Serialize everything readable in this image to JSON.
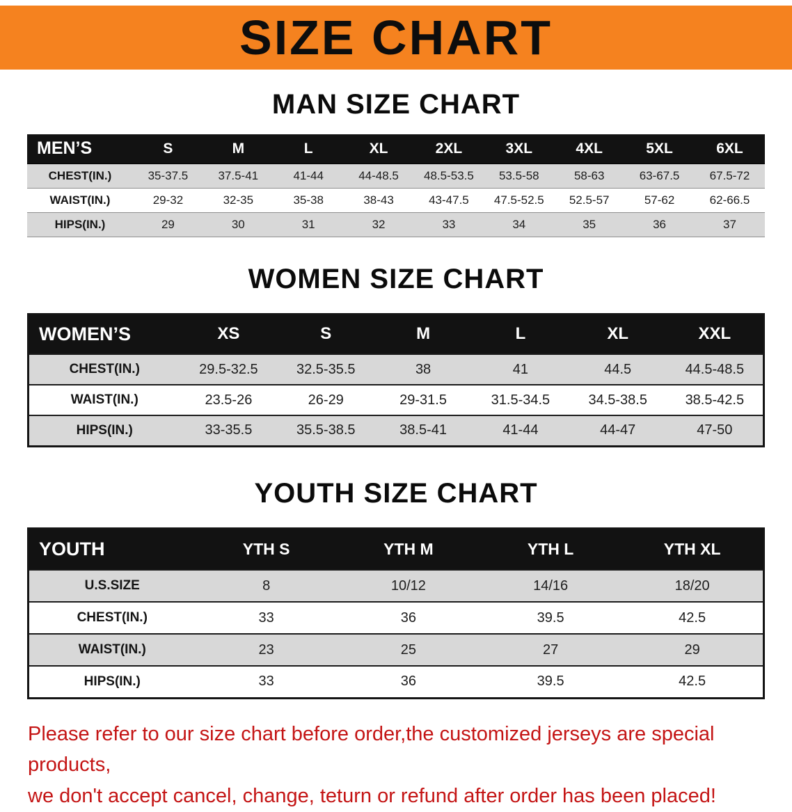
{
  "banner": {
    "title": "SIZE CHART"
  },
  "colors": {
    "banner_bg": "#f5821f",
    "row_shade": "#d8d8d8",
    "notice_color": "#c41414",
    "header_bar": "#121212"
  },
  "sections": {
    "men": {
      "heading": "MAN SIZE CHART",
      "table": {
        "corner_label": "MEN’S",
        "columns": [
          "S",
          "M",
          "L",
          "XL",
          "2XL",
          "3XL",
          "4XL",
          "5XL",
          "6XL"
        ],
        "rows": [
          {
            "label": "CHEST(IN.)",
            "values": [
              "35-37.5",
              "37.5-41",
              "41-44",
              "44-48.5",
              "48.5-53.5",
              "53.5-58",
              "58-63",
              "63-67.5",
              "67.5-72"
            ]
          },
          {
            "label": "WAIST(IN.)",
            "values": [
              "29-32",
              "32-35",
              "35-38",
              "38-43",
              "43-47.5",
              "47.5-52.5",
              "52.5-57",
              "57-62",
              "62-66.5"
            ]
          },
          {
            "label": "HIPS(IN.)",
            "values": [
              "29",
              "30",
              "31",
              "32",
              "33",
              "34",
              "35",
              "36",
              "37"
            ]
          }
        ]
      }
    },
    "women": {
      "heading": "WOMEN SIZE CHART",
      "table": {
        "corner_label": "WOMEN’S",
        "columns": [
          "XS",
          "S",
          "M",
          "L",
          "XL",
          "XXL"
        ],
        "rows": [
          {
            "label": "CHEST(IN.)",
            "values": [
              "29.5-32.5",
              "32.5-35.5",
              "38",
              "41",
              "44.5",
              "44.5-48.5"
            ]
          },
          {
            "label": "WAIST(IN.)",
            "values": [
              "23.5-26",
              "26-29",
              "29-31.5",
              "31.5-34.5",
              "34.5-38.5",
              "38.5-42.5"
            ]
          },
          {
            "label": "HIPS(IN.)",
            "values": [
              "33-35.5",
              "35.5-38.5",
              "38.5-41",
              "41-44",
              "44-47",
              "47-50"
            ]
          }
        ]
      }
    },
    "youth": {
      "heading": "YOUTH SIZE CHART",
      "table": {
        "corner_label": "YOUTH",
        "columns": [
          "YTH S",
          "YTH M",
          "YTH L",
          "YTH XL"
        ],
        "rows": [
          {
            "label": "U.S.SIZE",
            "values": [
              "8",
              "10/12",
              "14/16",
              "18/20"
            ]
          },
          {
            "label": "CHEST(IN.)",
            "values": [
              "33",
              "36",
              "39.5",
              "42.5"
            ]
          },
          {
            "label": "WAIST(IN.)",
            "values": [
              "23",
              "25",
              "27",
              "29"
            ]
          },
          {
            "label": "HIPS(IN.)",
            "values": [
              "33",
              "36",
              "39.5",
              "42.5"
            ]
          }
        ]
      }
    }
  },
  "footer": {
    "line1": "Please refer to our size chart before order,the customized jerseys are special products,",
    "line2": "we don't accept cancel, change, teturn or refund after order has been placed!"
  }
}
